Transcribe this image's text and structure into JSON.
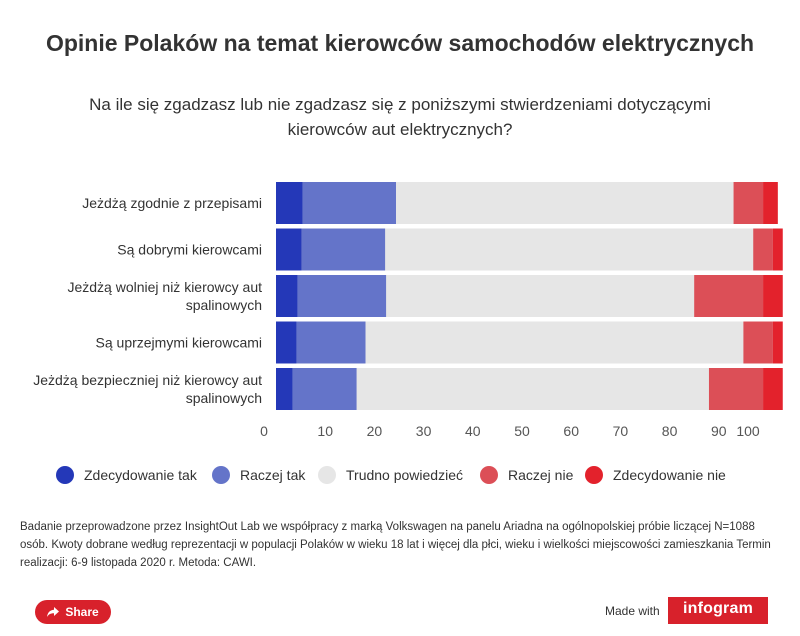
{
  "chart_data": {
    "type": "bar",
    "orientation": "horizontal",
    "stacked": true,
    "title": "Opinie Polaków na temat kierowców samochodów elektrycznych",
    "subtitle": "Na ile się zgadzasz lub nie zgadzasz się z poniższymi stwierdzeniami dotyczącymi kierowców aut elektrycznych?",
    "categories": [
      [
        "Jeżdżą zgodnie z przepisami"
      ],
      [
        "Są dobrymi kierowcami"
      ],
      [
        "Jeżdżą wolniej niż kierowcy aut",
        "spalinowych"
      ],
      [
        "Są uprzejmymi kierowcami"
      ],
      [
        "Jeżdżą bezpieczniej niż kierowcy aut",
        "spalinowych"
      ]
    ],
    "series": [
      {
        "name": "Zdecydowanie tak",
        "color": "#2438b8",
        "values": [
          5.4,
          5.2,
          4.4,
          4.2,
          3.4
        ]
      },
      {
        "name": "Raczej tak",
        "color": "#6474c9",
        "values": [
          19,
          17,
          18,
          14,
          13
        ]
      },
      {
        "name": "Trudno powiedzieć",
        "color": "#e6e6e6",
        "values": [
          68.6,
          74.8,
          62.6,
          76.8,
          71.6
        ]
      },
      {
        "name": "Raczej nie",
        "color": "#dc4f57",
        "values": [
          6,
          4,
          14,
          6,
          11
        ]
      },
      {
        "name": "Zdecydowanie nie",
        "color": "#e3222c",
        "values": [
          3,
          2,
          4,
          2,
          4
        ]
      }
    ],
    "xlim": [
      0,
      100
    ],
    "xticks": [
      "0",
      "10",
      "20",
      "30",
      "40",
      "50",
      "60",
      "70",
      "80",
      "90",
      "100"
    ],
    "legend_position": "bottom"
  },
  "note": "Badanie przeprowadzone przez InsightOut Lab we współpracy z marką Volkswagen na panelu Ariadna na ogólnopolskiej próbie liczącej N=1088 osób. Kwoty dobrane według reprezentacji w populacji Polaków w wieku 18 lat i więcej dla płci, wieku i wielkości miejscowości zamieszkania Termin realizacji: 6-9 listopada 2020 r. Metoda: CAWI.",
  "footer": {
    "share_label": "Share",
    "made_with": "Made with",
    "brand": "infogram"
  }
}
